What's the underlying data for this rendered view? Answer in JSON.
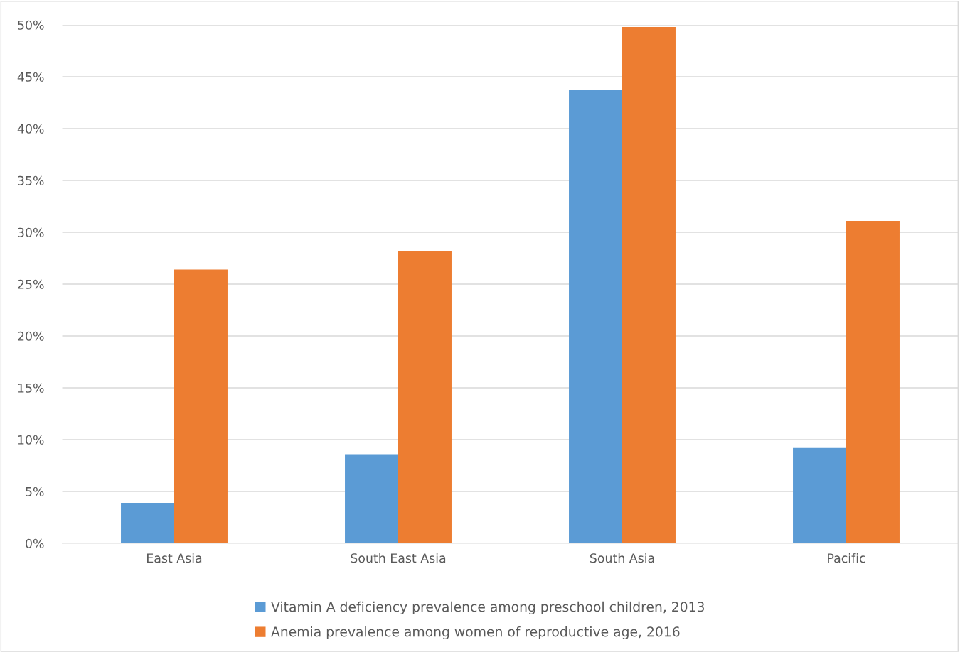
{
  "chart_data": {
    "type": "bar",
    "categories": [
      "East Asia",
      "South East Asia",
      "South Asia",
      "Pacific"
    ],
    "series": [
      {
        "name": "Vitamin A deficiency prevalence among preschool children, 2013",
        "color": "#5b9bd5",
        "values": [
          3.9,
          8.6,
          43.7,
          9.2
        ]
      },
      {
        "name": "Anemia prevalence among women of reproductive age, 2016",
        "color": "#ed7d31",
        "values": [
          26.4,
          28.2,
          49.8,
          31.1
        ]
      }
    ],
    "ylim": [
      0,
      50
    ],
    "yticks": [
      {
        "value": 0,
        "label": "0%"
      },
      {
        "value": 5,
        "label": "5%"
      },
      {
        "value": 10,
        "label": "10%"
      },
      {
        "value": 15,
        "label": "15%"
      },
      {
        "value": 20,
        "label": "20%"
      },
      {
        "value": 25,
        "label": "25%"
      },
      {
        "value": 30,
        "label": "30%"
      },
      {
        "value": 35,
        "label": "35%"
      },
      {
        "value": 40,
        "label": "40%"
      },
      {
        "value": 45,
        "label": "45%"
      },
      {
        "value": 50,
        "label": "50%"
      }
    ],
    "grid": "y",
    "legend": "bottom"
  }
}
